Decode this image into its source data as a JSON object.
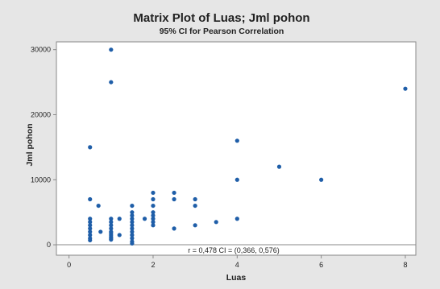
{
  "chart_data": {
    "type": "scatter",
    "title": "Matrix Plot of Luas; Jml pohon",
    "subtitle": "95% CI for Pearson Correlation",
    "xlabel": "Luas",
    "ylabel": "Jml pohon",
    "xlim": [
      -0.3,
      8.25
    ],
    "ylim": [
      -1600,
      31200
    ],
    "xticks": [
      0,
      2,
      4,
      6,
      8
    ],
    "xtick_labels": [
      "0",
      "2",
      "4",
      "6",
      "8"
    ],
    "yticks": [
      0,
      10000,
      20000,
      30000
    ],
    "ytick_labels": [
      "0",
      "10000",
      "20000",
      "30000"
    ],
    "grid": false,
    "legend": "none",
    "annotation": "r = 0,478  CI = (0,366, 0,576)",
    "colors": {
      "background": "#e6e6e6",
      "plot_area": "#ffffff",
      "marker": "#1f5ea8",
      "axis": "#888888"
    },
    "series": [
      {
        "x": [
          0.5,
          0.5,
          0.5,
          0.5,
          0.5,
          0.5,
          0.5,
          0.5,
          0.5,
          0.5,
          0.7,
          0.75,
          1,
          1,
          1,
          1,
          1,
          1,
          1,
          1,
          1,
          1,
          1,
          1,
          1.2,
          1.2,
          1.5,
          1.5,
          1.5,
          1.5,
          1.5,
          1.5,
          1.5,
          1.5,
          1.5,
          1.5,
          1.5,
          1.5,
          1.8,
          2,
          2,
          2,
          2,
          2,
          2,
          2,
          2,
          2.5,
          2.5,
          2.5,
          3,
          3,
          3,
          3.5,
          4,
          4,
          4,
          5,
          6,
          8
        ],
        "y": [
          15000,
          7000,
          4000,
          3500,
          3000,
          2500,
          2000,
          1500,
          1000,
          700,
          6000,
          2000,
          30000,
          25000,
          4000,
          3500,
          3000,
          2500,
          2000,
          1800,
          1500,
          1200,
          1000,
          800,
          4000,
          1500,
          6000,
          5000,
          4500,
          4000,
          3500,
          3000,
          2500,
          2000,
          1500,
          1000,
          500,
          200,
          4000,
          8000,
          7000,
          6000,
          5000,
          4500,
          4000,
          3500,
          3000,
          8000,
          7000,
          2500,
          7000,
          6000,
          3000,
          3500,
          16000,
          10000,
          4000,
          12000,
          10000,
          24000
        ]
      }
    ]
  }
}
